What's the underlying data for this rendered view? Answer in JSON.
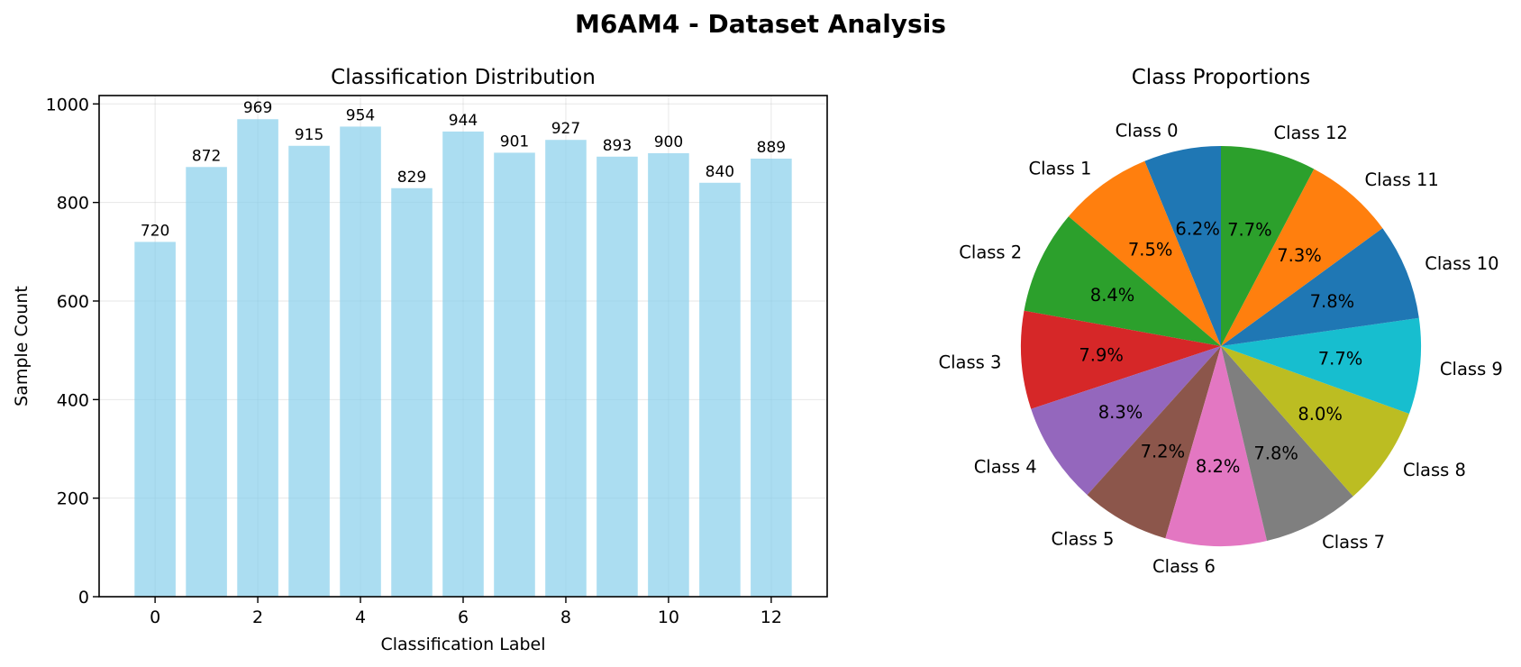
{
  "figure": {
    "suptitle": "M6AM4 - Dataset Analysis"
  },
  "chart_data": [
    {
      "type": "bar",
      "title": "Classification Distribution",
      "xlabel": "Classification Label",
      "ylabel": "Sample Count",
      "categories": [
        0,
        1,
        2,
        3,
        4,
        5,
        6,
        7,
        8,
        9,
        10,
        11,
        12
      ],
      "values": [
        720,
        872,
        969,
        915,
        954,
        829,
        944,
        901,
        927,
        893,
        900,
        840,
        889
      ],
      "value_labels": [
        "720",
        "872",
        "969",
        "915",
        "954",
        "829",
        "944",
        "901",
        "927",
        "893",
        "900",
        "840",
        "889"
      ],
      "xticks": [
        "0",
        "2",
        "4",
        "6",
        "8",
        "10",
        "12"
      ],
      "xtick_values": [
        0,
        2,
        4,
        6,
        8,
        10,
        12
      ],
      "yticks": [
        "0",
        "200",
        "400",
        "600",
        "800",
        "1000"
      ],
      "ytick_values": [
        0,
        200,
        400,
        600,
        800,
        1000
      ],
      "xlim": [
        -1.09,
        13.09
      ],
      "ylim": [
        0,
        1017
      ],
      "grid": true,
      "bar_color": "#87ceeb",
      "bar_opacity": 0.7
    },
    {
      "type": "pie",
      "title": "Class Proportions",
      "labels": [
        "Class 0",
        "Class 1",
        "Class 2",
        "Class 3",
        "Class 4",
        "Class 5",
        "Class 6",
        "Class 7",
        "Class 8",
        "Class 9",
        "Class 10",
        "Class 11",
        "Class 12"
      ],
      "values": [
        720,
        872,
        969,
        915,
        954,
        829,
        944,
        901,
        927,
        893,
        900,
        840,
        889
      ],
      "percent_labels": [
        "6.2%",
        "7.5%",
        "8.4%",
        "7.9%",
        "8.3%",
        "7.2%",
        "8.2%",
        "7.8%",
        "8.0%",
        "7.7%",
        "7.8%",
        "7.3%",
        "7.7%"
      ],
      "start_angle_deg": 90,
      "direction": "counterclockwise",
      "colors": [
        "#1f77b4",
        "#ff7f0e",
        "#2ca02c",
        "#d62728",
        "#9467bd",
        "#8c564b",
        "#e377c2",
        "#7f7f7f",
        "#bcbd22",
        "#17becf",
        "#1f77b4",
        "#ff7f0e",
        "#2ca02c"
      ]
    }
  ]
}
